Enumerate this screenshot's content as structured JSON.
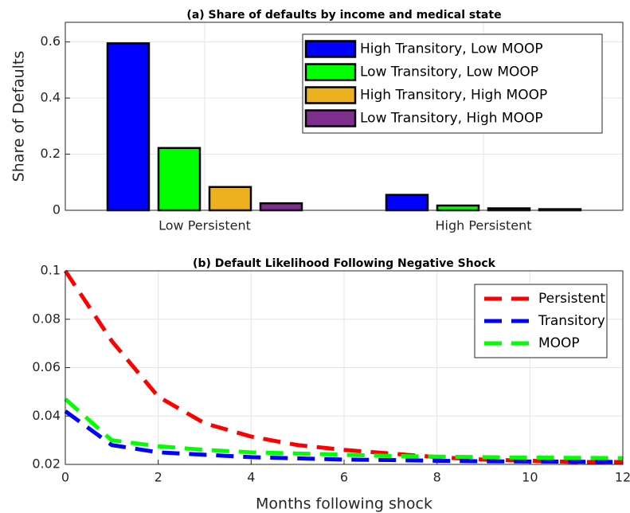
{
  "chart_data": [
    {
      "type": "bar",
      "title": "(a) Share of defaults by income and medical state",
      "ylabel": "Share of Defaults",
      "categories": [
        "Low Persistent",
        "High Persistent"
      ],
      "series": [
        {
          "name": "High Transitory, Low MOOP",
          "color": "#0000ff",
          "values": [
            0.595,
            0.055
          ]
        },
        {
          "name": "Low Transitory, Low MOOP",
          "color": "#00ff00",
          "values": [
            0.222,
            0.017
          ]
        },
        {
          "name": "High Transitory, High MOOP",
          "color": "#edb120",
          "values": [
            0.083,
            0.007
          ]
        },
        {
          "name": "Low Transitory, High MOOP",
          "color": "#7e2f8e",
          "values": [
            0.025,
            0.004
          ]
        }
      ],
      "ylim": [
        0,
        0.67
      ],
      "yticks": [
        0,
        0.2,
        0.4,
        0.6
      ],
      "grid": true,
      "legend": "top-right"
    },
    {
      "type": "line",
      "title": "(b) Default Likelihood Following Negative Shock",
      "xlabel": "Months following shock",
      "x": [
        0,
        1,
        2,
        3,
        4,
        5,
        6,
        7,
        8,
        9,
        10,
        11,
        12
      ],
      "series": [
        {
          "name": "Persistent",
          "color": "#ff0000",
          "values": [
            0.1,
            0.071,
            0.048,
            0.037,
            0.0315,
            0.028,
            0.026,
            0.0245,
            0.023,
            0.022,
            0.0215,
            0.021,
            0.021
          ]
        },
        {
          "name": "Transitory",
          "color": "#0000ff",
          "values": [
            0.042,
            0.028,
            0.025,
            0.024,
            0.023,
            0.0225,
            0.022,
            0.0218,
            0.0215,
            0.0213,
            0.0212,
            0.0211,
            0.021
          ]
        },
        {
          "name": "MOOP",
          "color": "#00ff00",
          "values": [
            0.047,
            0.03,
            0.0275,
            0.026,
            0.025,
            0.0245,
            0.024,
            0.0235,
            0.0232,
            0.023,
            0.0228,
            0.0227,
            0.0226
          ]
        }
      ],
      "xlim": [
        0,
        12
      ],
      "xticks": [
        0,
        2,
        4,
        6,
        8,
        10,
        12
      ],
      "ylim": [
        0.02,
        0.1
      ],
      "yticks": [
        0.02,
        0.04,
        0.06,
        0.08,
        0.1
      ],
      "grid": true,
      "legend": "top-right"
    }
  ]
}
